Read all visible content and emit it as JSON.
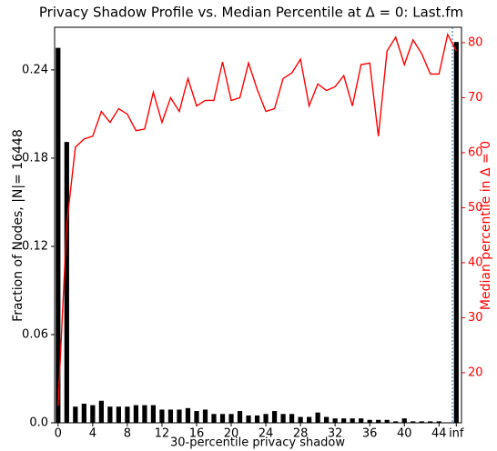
{
  "chart_data": {
    "type": "bar_line",
    "title": "Privacy Shadow Profile vs. Median Percentile at Δ = 0: Last.fm",
    "x_label": "30-percentile privacy shadow",
    "y_label": "Fraction of Nodes, |N|= 16448",
    "y2_label": "Median percentile in Δ = 0",
    "categories": [
      "0",
      null,
      null,
      null,
      "4",
      null,
      null,
      null,
      "8",
      null,
      null,
      null,
      "12",
      null,
      null,
      null,
      "16",
      null,
      null,
      null,
      "20",
      null,
      null,
      null,
      "24",
      null,
      null,
      null,
      "28",
      null,
      null,
      null,
      "32",
      null,
      null,
      null,
      "36",
      null,
      null,
      null,
      "40",
      null,
      null,
      null,
      "44",
      null,
      "inf"
    ],
    "xlim": [
      -0.4,
      46.6
    ],
    "ylim": [
      0,
      0.269
    ],
    "yticks": [
      {
        "value": 0,
        "label": "0.0"
      },
      0.06,
      0.12,
      0.18,
      0.24
    ],
    "y2lim": [
      10.9,
      82.8
    ],
    "y2ticks": [
      20,
      30,
      40,
      50,
      60,
      70,
      80
    ],
    "series": [
      {
        "name": "Fraction of Nodes",
        "type": "bar",
        "color": "#000000",
        "values": [
          0.255,
          0.191,
          0.011,
          0.013,
          0.012,
          0.015,
          0.011,
          0.011,
          0.011,
          0.012,
          0.012,
          0.012,
          0.009,
          0.009,
          0.009,
          0.01,
          0.008,
          0.009,
          0.006,
          0.006,
          0.006,
          0.008,
          0.005,
          0.005,
          0.006,
          0.008,
          0.006,
          0.006,
          0.004,
          0.004,
          0.007,
          0.004,
          0.003,
          0.003,
          0.003,
          0.003,
          0.002,
          0.002,
          0.002,
          0.001,
          0.003,
          0.001,
          0.001,
          0.001,
          0.001,
          0.0,
          0.259
        ]
      },
      {
        "name": "Median percentile",
        "type": "line",
        "axis": "y2",
        "color": "#ff0000",
        "values": [
          14,
          47,
          61,
          62.5,
          63,
          67.5,
          65.5,
          68,
          67,
          64,
          64.3,
          71,
          65.5,
          70,
          67.5,
          73.5,
          68.5,
          69.5,
          69.5,
          76.5,
          69.5,
          70,
          76.3,
          71.5,
          67.5,
          68,
          73.5,
          74.5,
          77,
          68.5,
          72.5,
          71.3,
          72,
          74,
          68.5,
          76,
          76.3,
          63,
          78.5,
          81,
          76,
          80.5,
          78,
          74.3,
          74.3,
          81.5,
          78.5
        ]
      }
    ]
  }
}
